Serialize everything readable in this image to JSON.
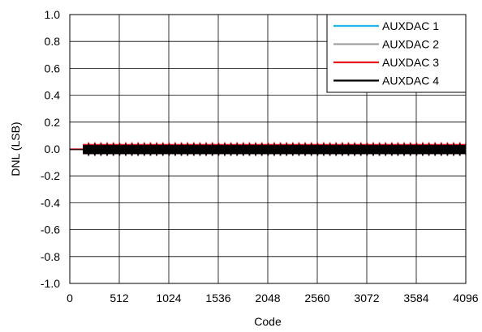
{
  "chart_data": {
    "type": "line",
    "title": "",
    "xlabel": "Code",
    "ylabel": "DNL (LSB)",
    "xlim": [
      0,
      4096
    ],
    "ylim": [
      -1.0,
      1.0
    ],
    "x_ticks": [
      0,
      512,
      1024,
      1536,
      2048,
      2560,
      3072,
      3584,
      4096
    ],
    "x_tick_labels": [
      "0",
      "512",
      "1024",
      "1536",
      "2048",
      "2560",
      "3072",
      "3584",
      "4096"
    ],
    "y_ticks": [
      1.0,
      0.8,
      0.6,
      0.4,
      0.2,
      0.0,
      -0.2,
      -0.4,
      -0.6,
      -0.8,
      -1.0
    ],
    "y_tick_labels": [
      "1.0",
      "0.8",
      "0.6",
      "0.4",
      "0.2",
      "0.0",
      "-0.2",
      "-0.4",
      "-0.6",
      "-0.8",
      "-1.0"
    ],
    "grid": true,
    "legend_position": "top-right",
    "data_start_code": 140,
    "series": [
      {
        "name": "AUXDAC 1",
        "color": "#1fb4e6",
        "amplitude": 0.04,
        "offset": 0.0
      },
      {
        "name": "AUXDAC 2",
        "color": "#a0a0a0",
        "amplitude": 0.045,
        "offset": 0.0
      },
      {
        "name": "AUXDAC 3",
        "color": "#e8161c",
        "amplitude": 0.05,
        "offset": 0.0
      },
      {
        "name": "AUXDAC 4",
        "color": "#000000",
        "amplitude": 0.045,
        "offset": -0.005
      }
    ]
  }
}
